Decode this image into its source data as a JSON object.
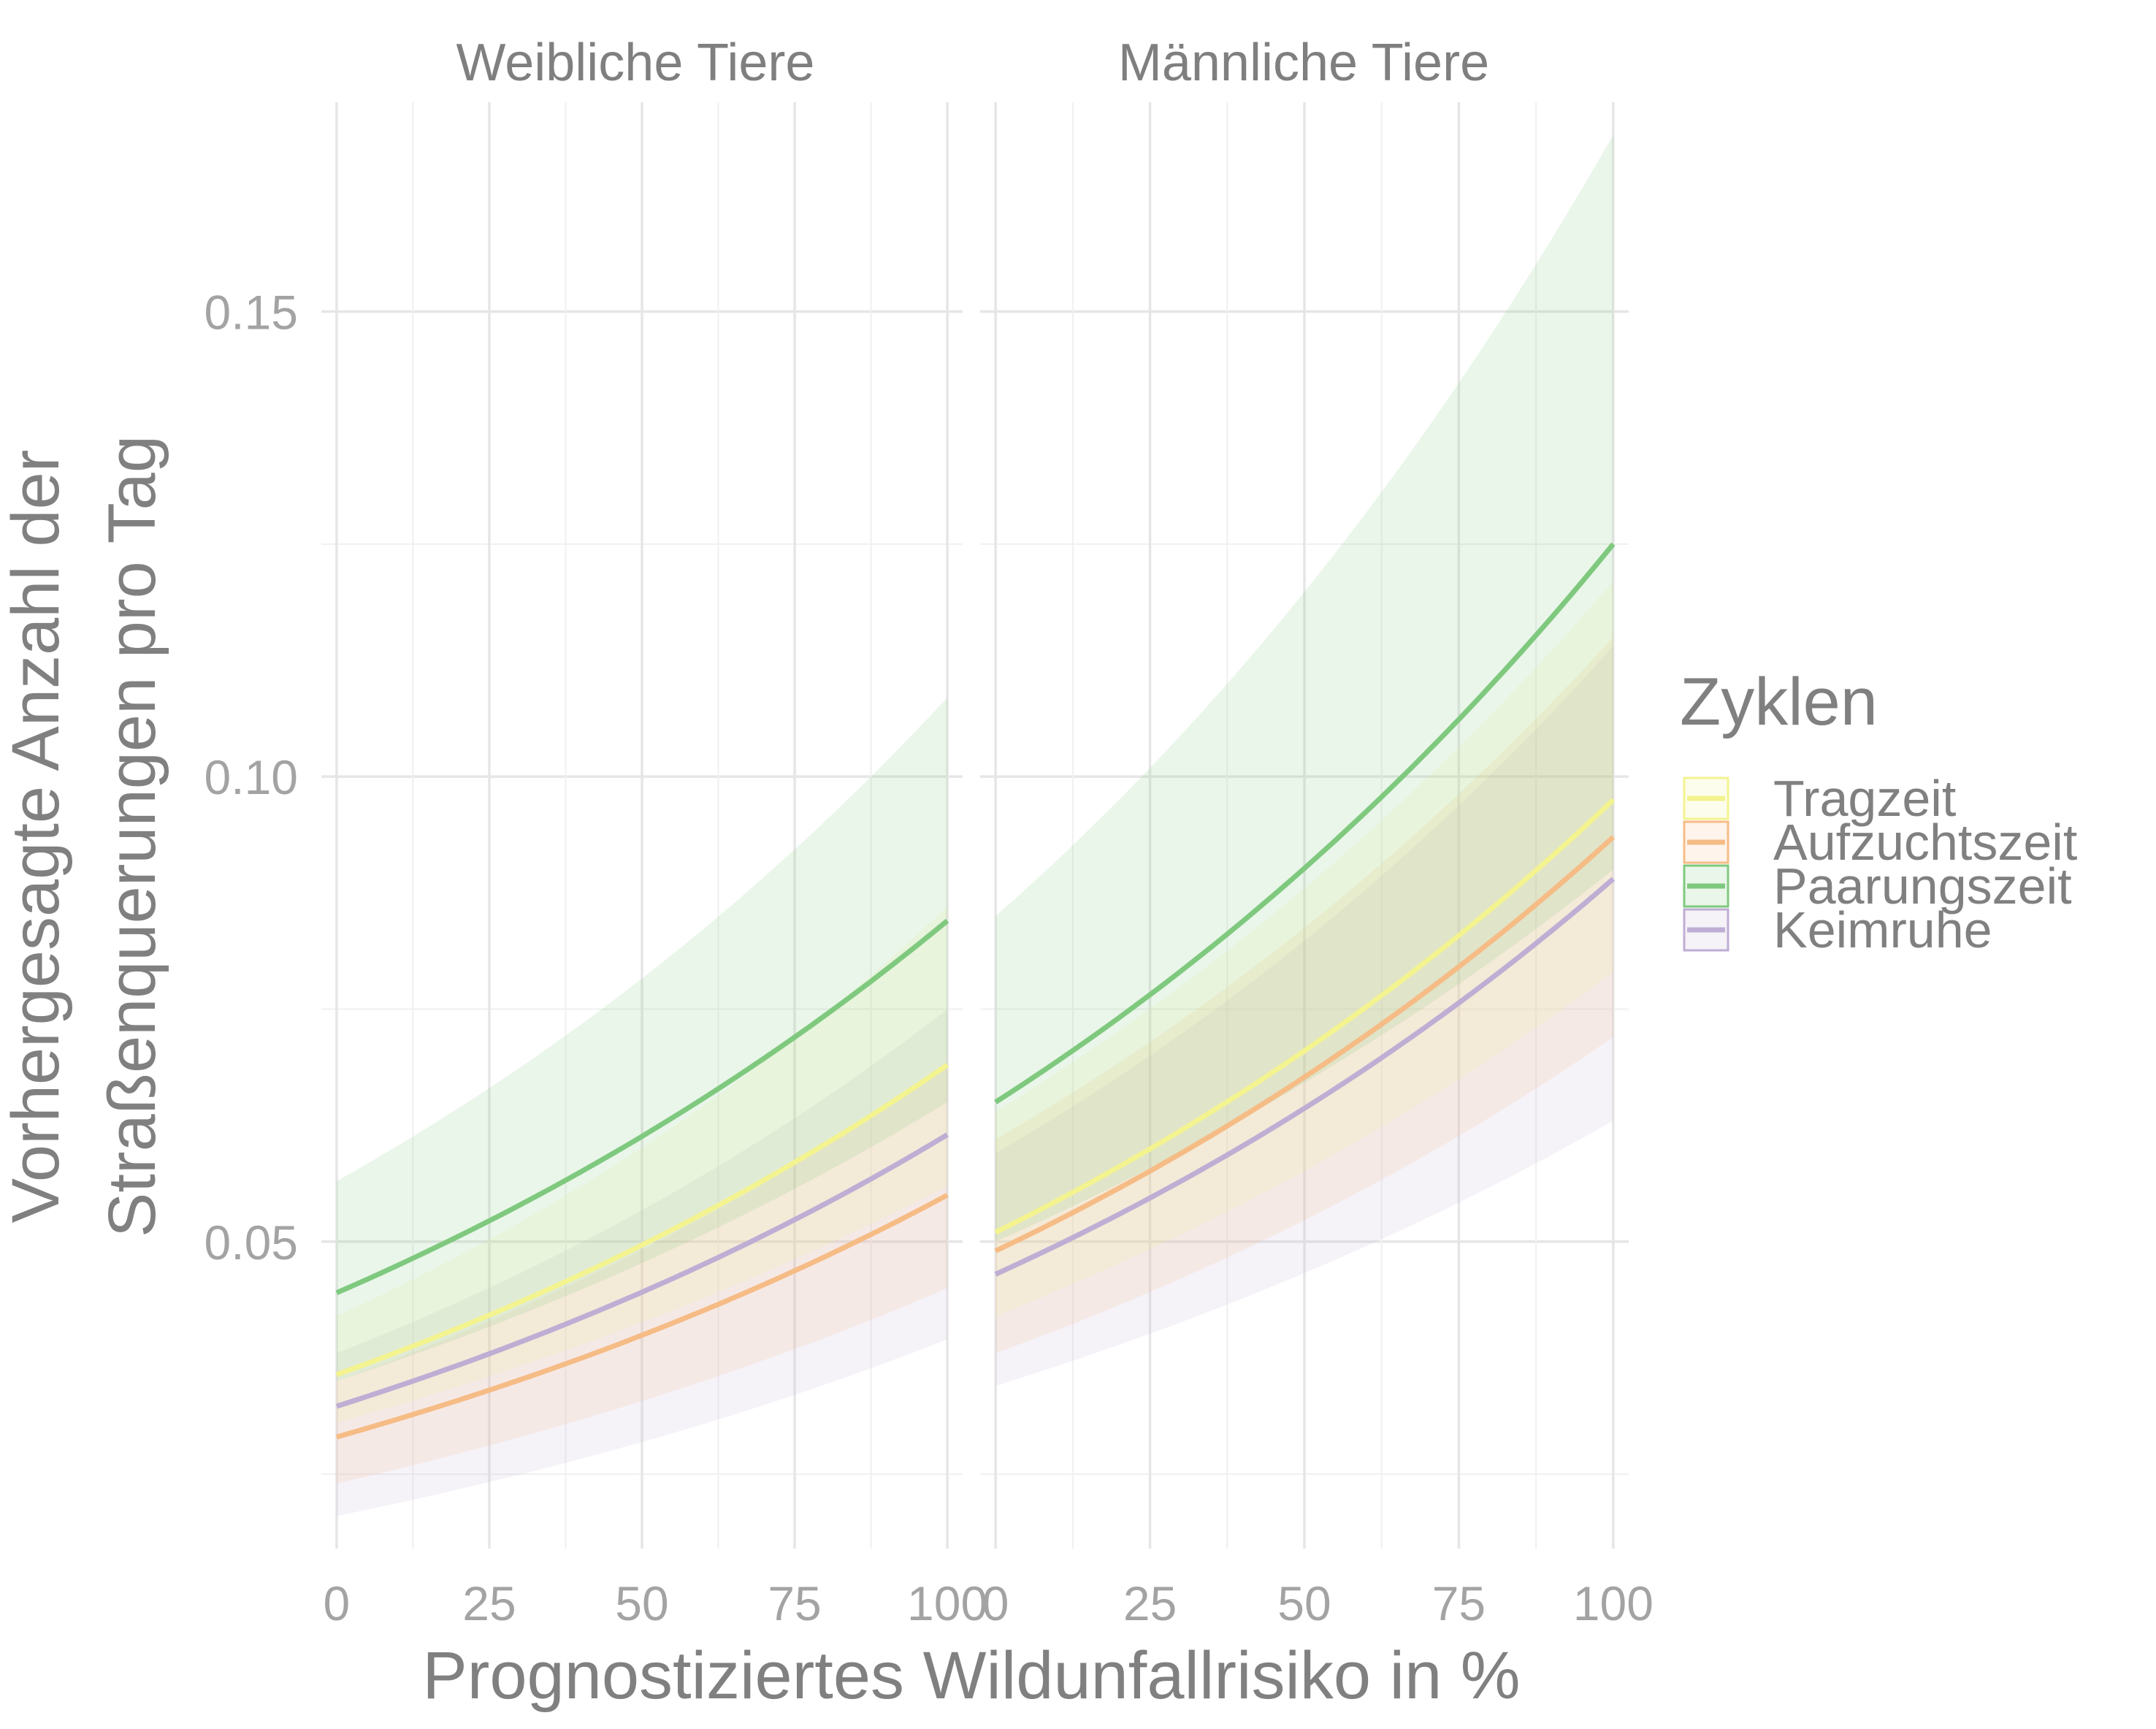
{
  "chart_data": {
    "type": "line",
    "facets": [
      {
        "title": "Weibliche Tiere"
      },
      {
        "title": "Männliche Tiere"
      }
    ],
    "xlabel": "Prognostiziertes Wildunfallrisiko in %",
    "ylabel_line1": "Vorhergesagte Anzahl der",
    "ylabel_line2": "Straßenquerungen pro Tag",
    "x_ticks": [
      0,
      25,
      50,
      75,
      100
    ],
    "x_tick_labels": [
      "0",
      "25",
      "50",
      "75",
      "100"
    ],
    "y_ticks": [
      0.05,
      0.1,
      0.15
    ],
    "y_tick_labels": [
      "0.05",
      "0.10",
      "0.15"
    ],
    "xlim": [
      -2.5,
      102.5
    ],
    "ylim": [
      0.017,
      0.1725
    ],
    "grid": true,
    "legend": {
      "title": "Zyklen",
      "position": "right",
      "items": [
        "Tragzeit",
        "Aufzuchtszeit",
        "Paarungszeit",
        "Keimruhe"
      ]
    },
    "x": [
      0,
      100
    ],
    "series": [
      {
        "name": "Tragzeit",
        "color": "#f3f390",
        "facet": 0,
        "values": [
          0.0357,
          0.069
        ],
        "lower": [
          0.0305,
          0.056
        ],
        "upper": [
          0.042,
          0.086
        ]
      },
      {
        "name": "Aufzuchtszeit",
        "color": "#f6bc86",
        "facet": 0,
        "values": [
          0.029,
          0.055
        ],
        "lower": [
          0.024,
          0.045
        ],
        "upper": [
          0.035,
          0.069
        ]
      },
      {
        "name": "Paarungszeit",
        "color": "#7fc97f",
        "facet": 0,
        "values": [
          0.0445,
          0.0845
        ],
        "lower": [
          0.035,
          0.065
        ],
        "upper": [
          0.0565,
          0.1085
        ]
      },
      {
        "name": "Keimruhe",
        "color": "#beaed4",
        "facet": 0,
        "values": [
          0.0323,
          0.0615
        ],
        "lower": [
          0.0205,
          0.0395
        ],
        "upper": [
          0.038,
          0.075
        ]
      },
      {
        "name": "Tragzeit",
        "color": "#f3f390",
        "facet": 1,
        "values": [
          0.051,
          0.0975
        ],
        "lower": [
          0.042,
          0.079
        ],
        "upper": [
          0.064,
          0.121
        ]
      },
      {
        "name": "Aufzuchtszeit",
        "color": "#f6bc86",
        "facet": 1,
        "values": [
          0.049,
          0.0935
        ],
        "lower": [
          0.038,
          0.072
        ],
        "upper": [
          0.061,
          0.115
        ]
      },
      {
        "name": "Paarungszeit",
        "color": "#7fc97f",
        "facet": 1,
        "values": [
          0.065,
          0.125
        ],
        "lower": [
          0.05,
          0.09
        ],
        "upper": [
          0.085,
          0.169
        ]
      },
      {
        "name": "Keimruhe",
        "color": "#beaed4",
        "facet": 1,
        "values": [
          0.0465,
          0.089
        ],
        "lower": [
          0.0345,
          0.063
        ],
        "upper": [
          0.0595,
          0.114
        ]
      }
    ]
  }
}
